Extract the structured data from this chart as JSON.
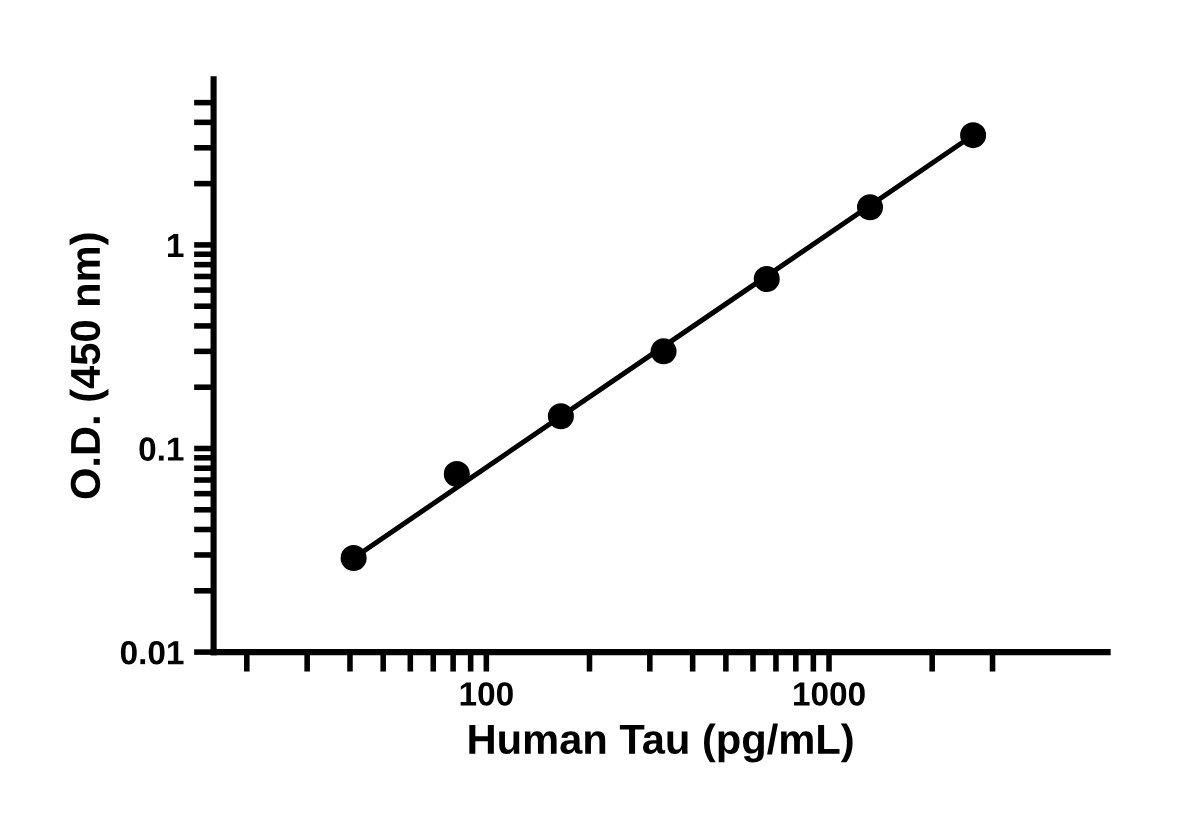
{
  "chart_data": {
    "type": "scatter",
    "xlabel": "Human Tau (pg/mL)",
    "ylabel": "O.D. (450 nm)",
    "log": "xy",
    "grid": false,
    "xlim": [
      16,
      6500
    ],
    "ylim": [
      0.01,
      6.5
    ],
    "xticks": [
      {
        "value": 20,
        "label": null
      },
      {
        "value": 30,
        "label": null
      },
      {
        "value": 40,
        "label": null
      },
      {
        "value": 50,
        "label": null
      },
      {
        "value": 60,
        "label": null
      },
      {
        "value": 70,
        "label": null
      },
      {
        "value": 80,
        "label": null
      },
      {
        "value": 90,
        "label": null
      },
      100,
      {
        "value": 200,
        "label": null
      },
      {
        "value": 300,
        "label": null
      },
      {
        "value": 400,
        "label": null
      },
      {
        "value": 500,
        "label": null
      },
      {
        "value": 600,
        "label": null
      },
      {
        "value": 700,
        "label": null
      },
      {
        "value": 800,
        "label": null
      },
      {
        "value": 900,
        "label": null
      },
      1000,
      {
        "value": 2000,
        "label": null
      },
      {
        "value": 3000,
        "label": null
      }
    ],
    "yticks": [
      0.01,
      {
        "value": 0.02,
        "label": null
      },
      {
        "value": 0.03,
        "label": null
      },
      {
        "value": 0.04,
        "label": null
      },
      {
        "value": 0.05,
        "label": null
      },
      {
        "value": 0.06,
        "label": null
      },
      {
        "value": 0.07,
        "label": null
      },
      {
        "value": 0.08,
        "label": null
      },
      {
        "value": 0.09,
        "label": null
      },
      0.1,
      {
        "value": 0.2,
        "label": null
      },
      {
        "value": 0.3,
        "label": null
      },
      {
        "value": 0.4,
        "label": null
      },
      {
        "value": 0.5,
        "label": null
      },
      {
        "value": 0.6,
        "label": null
      },
      {
        "value": 0.7,
        "label": null
      },
      {
        "value": 0.8,
        "label": null
      },
      {
        "value": 0.9,
        "label": null
      },
      1,
      {
        "value": 2,
        "label": null
      },
      {
        "value": 3,
        "label": null
      },
      {
        "value": 4,
        "label": null
      },
      {
        "value": 5,
        "label": null
      }
    ],
    "series": [
      {
        "color": "#000000",
        "marker": "circle",
        "x": [
          41,
          82,
          165,
          329,
          658,
          1317,
          2633
        ],
        "values": [
          0.029,
          0.075,
          0.144,
          0.3,
          0.68,
          1.53,
          3.46
        ]
      },
      {
        "type": "line",
        "color": "#000000",
        "line_style": "solid",
        "x": [
          41,
          2633
        ],
        "values": [
          0.029,
          3.46
        ]
      }
    ]
  }
}
